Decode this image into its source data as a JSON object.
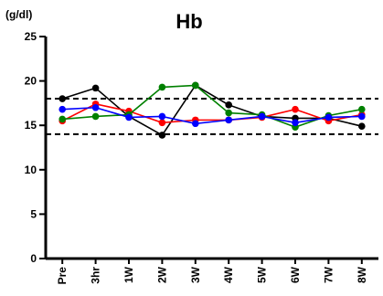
{
  "chart_data": {
    "type": "line",
    "title": "Hb",
    "ylabel": "(g/dl)",
    "xlabel": "",
    "ylim": [
      0,
      25
    ],
    "yticks": [
      0,
      5,
      10,
      15,
      20,
      25
    ],
    "grid": false,
    "legend": "none",
    "categories": [
      "Pre",
      "3hr",
      "1W",
      "2W",
      "3W",
      "4W",
      "5W",
      "6W",
      "7W",
      "8W"
    ],
    "reference_lines": [
      18,
      14
    ],
    "series": [
      {
        "color": "#000000",
        "values": [
          18.0,
          19.2,
          16.0,
          13.9,
          19.5,
          17.3,
          16.0,
          15.8,
          15.8,
          14.9
        ]
      },
      {
        "color": "#ff0000",
        "values": [
          15.5,
          17.4,
          16.6,
          15.3,
          15.6,
          15.6,
          15.9,
          16.8,
          15.5,
          16.2
        ]
      },
      {
        "color": "#008000",
        "values": [
          15.7,
          16.0,
          16.2,
          19.3,
          19.5,
          16.4,
          16.2,
          14.8,
          16.1,
          16.8
        ]
      },
      {
        "color": "#0000ff",
        "values": [
          16.8,
          17.0,
          15.9,
          16.0,
          15.2,
          15.6,
          16.0,
          15.3,
          15.9,
          16.0
        ]
      }
    ]
  }
}
